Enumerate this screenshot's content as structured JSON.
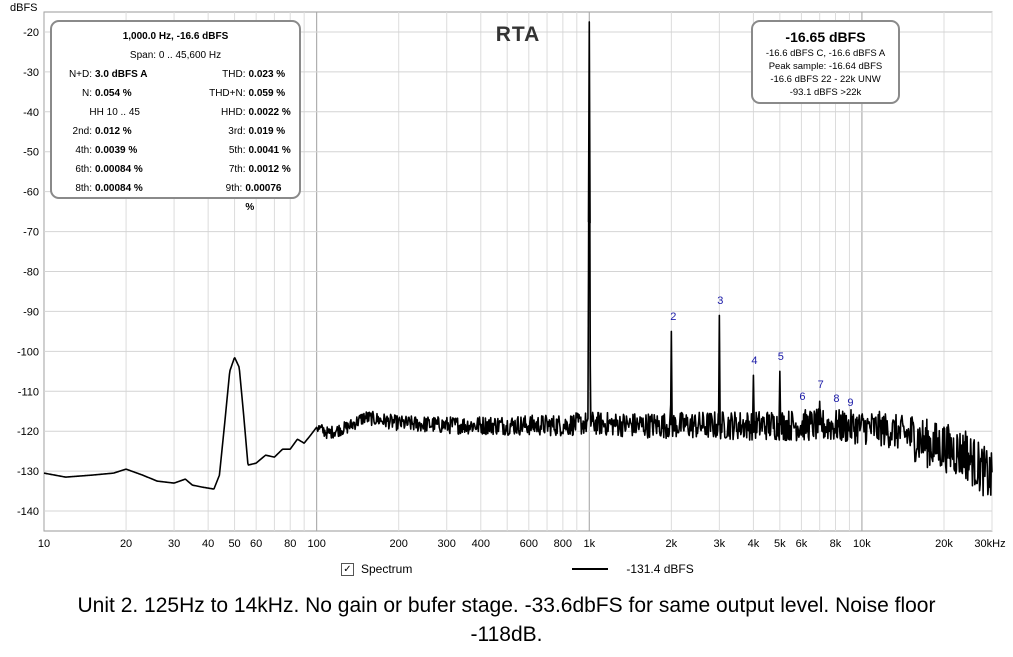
{
  "chart_data": {
    "type": "line",
    "title": "RTA",
    "ylabel": "dBFS",
    "xunit": "kHz",
    "xscale": "log",
    "xlim": [
      10,
      30000
    ],
    "ylim": [
      -145,
      -15
    ],
    "grid": true,
    "y_ticks": [
      "-20",
      "-30",
      "-40",
      "-50",
      "-60",
      "-70",
      "-80",
      "-90",
      "-100",
      "-110",
      "-120",
      "-130",
      "-140"
    ],
    "x_ticks": [
      {
        "v": 10,
        "label": "10"
      },
      {
        "v": 20,
        "label": "20"
      },
      {
        "v": 30,
        "label": "30"
      },
      {
        "v": 40,
        "label": "40"
      },
      {
        "v": 50,
        "label": "50"
      },
      {
        "v": 60,
        "label": "60"
      },
      {
        "v": 80,
        "label": "80"
      },
      {
        "v": 100,
        "label": "100"
      },
      {
        "v": 200,
        "label": "200"
      },
      {
        "v": 300,
        "label": "300"
      },
      {
        "v": 400,
        "label": "400"
      },
      {
        "v": 600,
        "label": "600"
      },
      {
        "v": 800,
        "label": "800"
      },
      {
        "v": 1000,
        "label": "1k"
      },
      {
        "v": 2000,
        "label": "2k"
      },
      {
        "v": 3000,
        "label": "3k"
      },
      {
        "v": 4000,
        "label": "4k"
      },
      {
        "v": 5000,
        "label": "5k"
      },
      {
        "v": 6000,
        "label": "6k"
      },
      {
        "v": 8000,
        "label": "8k"
      },
      {
        "v": 10000,
        "label": "10k"
      },
      {
        "v": 20000,
        "label": "20k"
      },
      {
        "v": 30000,
        "label": "30kHz"
      }
    ],
    "series": [
      {
        "name": "Spectrum",
        "color": "#000000",
        "points": [
          [
            10,
            -130.5
          ],
          [
            12,
            -131.5
          ],
          [
            15,
            -131
          ],
          [
            18,
            -130.5
          ],
          [
            20,
            -129.5
          ],
          [
            23,
            -131
          ],
          [
            26,
            -132.5
          ],
          [
            30,
            -133
          ],
          [
            33,
            -132
          ],
          [
            35,
            -133.5
          ],
          [
            38,
            -134
          ],
          [
            42,
            -134.5
          ],
          [
            44,
            -131
          ],
          [
            46,
            -118
          ],
          [
            48,
            -105
          ],
          [
            50,
            -101.5
          ],
          [
            52,
            -104
          ],
          [
            54,
            -116
          ],
          [
            56,
            -128.5
          ],
          [
            60,
            -128
          ],
          [
            65,
            -126
          ],
          [
            70,
            -126.5
          ],
          [
            75,
            -124.5
          ],
          [
            80,
            -124.5
          ],
          [
            85,
            -122
          ],
          [
            90,
            -123
          ],
          [
            95,
            -121
          ],
          [
            100,
            -119
          ],
          [
            110,
            -120.5
          ],
          [
            130,
            -119
          ],
          [
            150,
            -116.5
          ],
          [
            200,
            -118
          ],
          [
            300,
            -118.5
          ],
          [
            500,
            -118.5
          ],
          [
            800,
            -118.5
          ],
          [
            990,
            -118
          ],
          [
            1000,
            -17.5
          ],
          [
            1010,
            -118
          ],
          [
            1500,
            -118.5
          ],
          [
            1990,
            -118.5
          ],
          [
            2000,
            -95
          ],
          [
            2010,
            -118.5
          ],
          [
            2990,
            -118.5
          ],
          [
            3000,
            -91
          ],
          [
            3010,
            -118.5
          ],
          [
            3990,
            -118.5
          ],
          [
            4000,
            -106
          ],
          [
            4010,
            -118.5
          ],
          [
            4990,
            -118.5
          ],
          [
            5000,
            -105
          ],
          [
            5010,
            -118.5
          ],
          [
            6000,
            -118.5
          ],
          [
            6990,
            -118.5
          ],
          [
            7000,
            -112.5
          ],
          [
            7010,
            -118.5
          ],
          [
            10000,
            -119
          ],
          [
            12000,
            -119.5
          ],
          [
            15000,
            -121
          ],
          [
            18000,
            -123.5
          ],
          [
            19990,
            -124
          ],
          [
            20000,
            -119
          ],
          [
            20010,
            -124
          ],
          [
            22000,
            -125
          ],
          [
            23990,
            -126
          ],
          [
            24000,
            -120
          ],
          [
            24010,
            -126
          ],
          [
            25000,
            -127
          ],
          [
            27000,
            -129
          ],
          [
            30000,
            -132
          ]
        ]
      }
    ],
    "harmonic_labels": [
      {
        "label": "2",
        "f": 2000,
        "y": -92.2
      },
      {
        "label": "3",
        "f": 3000,
        "y": -88.2
      },
      {
        "label": "4",
        "f": 4000,
        "y": -103.2
      },
      {
        "label": "5",
        "f": 5000,
        "y": -102.2
      },
      {
        "label": "6",
        "f": 6000,
        "y": -112.2
      },
      {
        "label": "7",
        "f": 7000,
        "y": -109.2
      },
      {
        "label": "8",
        "f": 8000,
        "y": -112.7
      },
      {
        "label": "9",
        "f": 9000,
        "y": -113.7
      }
    ]
  },
  "stats_box": {
    "header": "1,000.0 Hz, -16.6 dBFS",
    "span": "Span: 0 .. 45,600 Hz",
    "rows": [
      {
        "l1": "N+D:",
        "v1": "3.0 dBFS A",
        "l2": "THD:",
        "v2": "0.023 %"
      },
      {
        "l1": "N:",
        "v1": "0.054 %",
        "l2": "THD+N:",
        "v2": "0.059 %"
      },
      {
        "l1": "HH 10 .. 45",
        "v1": "",
        "l2": "HHD:",
        "v2": "0.0022 %"
      },
      {
        "l1": "2nd:",
        "v1": "0.012 %",
        "l2": "3rd:",
        "v2": "0.019 %"
      },
      {
        "l1": "4th:",
        "v1": "0.0039 %",
        "l2": "5th:",
        "v2": "0.0041 %"
      },
      {
        "l1": "6th:",
        "v1": "0.00084 %",
        "l2": "7th:",
        "v2": "0.0012 %"
      },
      {
        "l1": "8th:",
        "v1": "0.00084 %",
        "l2": "9th:",
        "v2": "0.00076 %"
      }
    ]
  },
  "level_box": {
    "big": "-16.65 dBFS",
    "lines": [
      "-16.6 dBFS C, -16.6 dBFS A",
      "Peak sample: -16.64 dBFS",
      "-16.6 dBFS 22 - 22k UNW",
      "-93.1 dBFS >22k"
    ]
  },
  "legend": {
    "checkbox_label": "Spectrum",
    "checked": true,
    "series_value": "-131.4 dBFS"
  },
  "caption": {
    "line1": "Unit 2. 125Hz to 14kHz. No gain or bufer stage. -33.6dbFS for same output level. Noise floor",
    "line2": "-118dB."
  }
}
